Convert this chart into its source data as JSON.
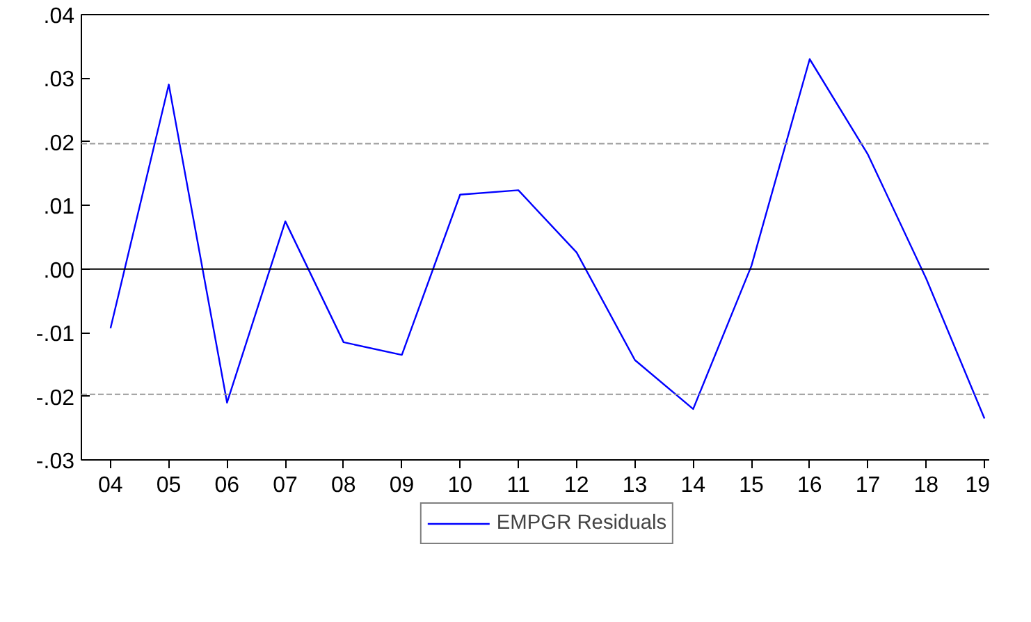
{
  "chart_data": {
    "type": "line",
    "categories": [
      "04",
      "05",
      "06",
      "07",
      "08",
      "09",
      "10",
      "11",
      "12",
      "13",
      "14",
      "15",
      "16",
      "17",
      "18",
      "19"
    ],
    "series": [
      {
        "name": "EMPGR Residuals",
        "color": "#0000ff",
        "values": [
          -0.0093,
          0.029,
          -0.021,
          0.0075,
          -0.0115,
          -0.0135,
          0.0117,
          0.0124,
          0.0026,
          -0.0143,
          -0.022,
          0.0005,
          0.033,
          0.018,
          -0.0015,
          -0.0235
        ]
      }
    ],
    "ylim": [
      -0.03,
      0.04
    ],
    "yticks": [
      {
        "value": -0.03,
        "label": "-.03"
      },
      {
        "value": -0.02,
        "label": "-.02"
      },
      {
        "value": -0.01,
        "label": "-.01"
      },
      {
        "value": 0,
        "label": ".00"
      },
      {
        "value": 0.01,
        "label": ".01"
      },
      {
        "value": 0.02,
        "label": ".02"
      },
      {
        "value": 0.03,
        "label": ".03"
      },
      {
        "value": 0.04,
        "label": ".04"
      }
    ],
    "ref_lines": [
      {
        "axis": "y",
        "value": 0.0197,
        "color": "#999999",
        "line_style": "dashed"
      },
      {
        "axis": "y",
        "value": 0,
        "color": "#000000",
        "line_style": "solid"
      },
      {
        "axis": "y",
        "value": -0.0197,
        "color": "#999999",
        "line_style": "dashed"
      }
    ],
    "grid": false,
    "legend": "bottom",
    "marker": "none",
    "line_style": "solid"
  }
}
